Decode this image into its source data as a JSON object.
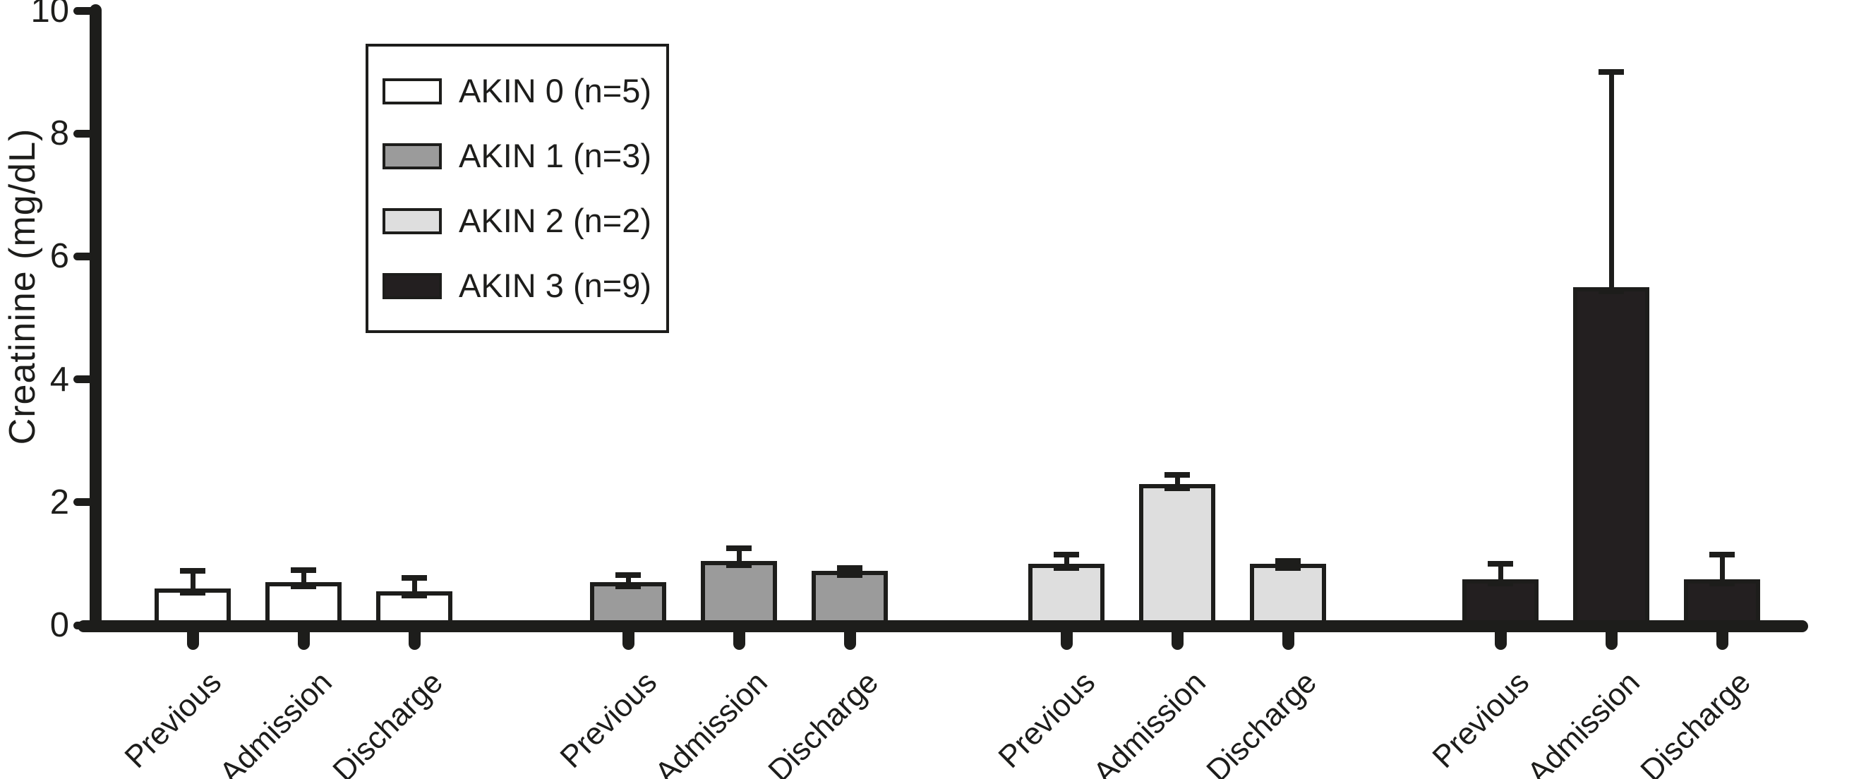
{
  "chart_data": {
    "type": "bar",
    "title": "",
    "xlabel": "",
    "ylabel": "Creatinine (mg/dL)",
    "ylim": [
      0,
      10
    ],
    "yticks": [
      0,
      2,
      4,
      6,
      8,
      10
    ],
    "grid": false,
    "legend_position": "upper-left-inside",
    "categories": [
      "Previous",
      "Admission",
      "Discharge"
    ],
    "series": [
      {
        "name": "AKIN 0 (n=5)",
        "color": "#ffffff",
        "values": [
          0.6,
          0.7,
          0.55
        ],
        "errors": [
          0.28,
          0.2,
          0.22
        ]
      },
      {
        "name": "AKIN 1 (n=3)",
        "color": "#9b9b9b",
        "values": [
          0.7,
          1.05,
          0.88
        ],
        "errors": [
          0.12,
          0.2,
          0.05
        ]
      },
      {
        "name": "AKIN 2 (n=2)",
        "color": "#dedede",
        "values": [
          1.0,
          2.3,
          1.0
        ],
        "errors": [
          0.15,
          0.15,
          0.05
        ]
      },
      {
        "name": "AKIN 3 (n=9)",
        "color": "#231f20",
        "values": [
          0.75,
          5.5,
          0.75
        ],
        "errors": [
          0.25,
          3.5,
          0.4
        ]
      }
    ]
  }
}
